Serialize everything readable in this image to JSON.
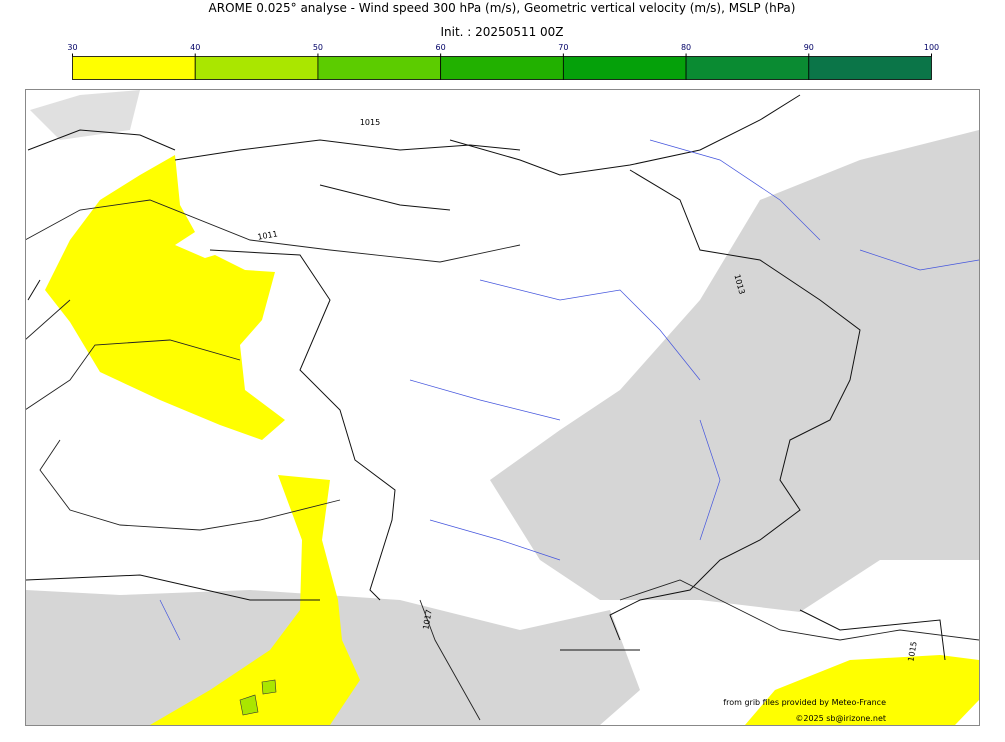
{
  "header": {
    "title": "AROME 0.025° analyse - Wind speed 300 hPa (m/s), Geometric vertical velocity (m/s), MSLP (hPa)",
    "subtitle": "Init. : 20250511 00Z"
  },
  "colorbar": {
    "ticks": [
      30,
      40,
      50,
      60,
      70,
      80,
      90,
      100
    ],
    "colors": [
      "#ffff00",
      "#aae600",
      "#5ccc00",
      "#22b100",
      "#05a10a",
      "#0a8b32",
      "#0b7548"
    ]
  },
  "isobar_labels": [
    "1015",
    "1011",
    "1013",
    "1017",
    "1015"
  ],
  "credits": [
    "from grib files provided by Meteo-France",
    "©2025 sb@irizone.net"
  ]
}
